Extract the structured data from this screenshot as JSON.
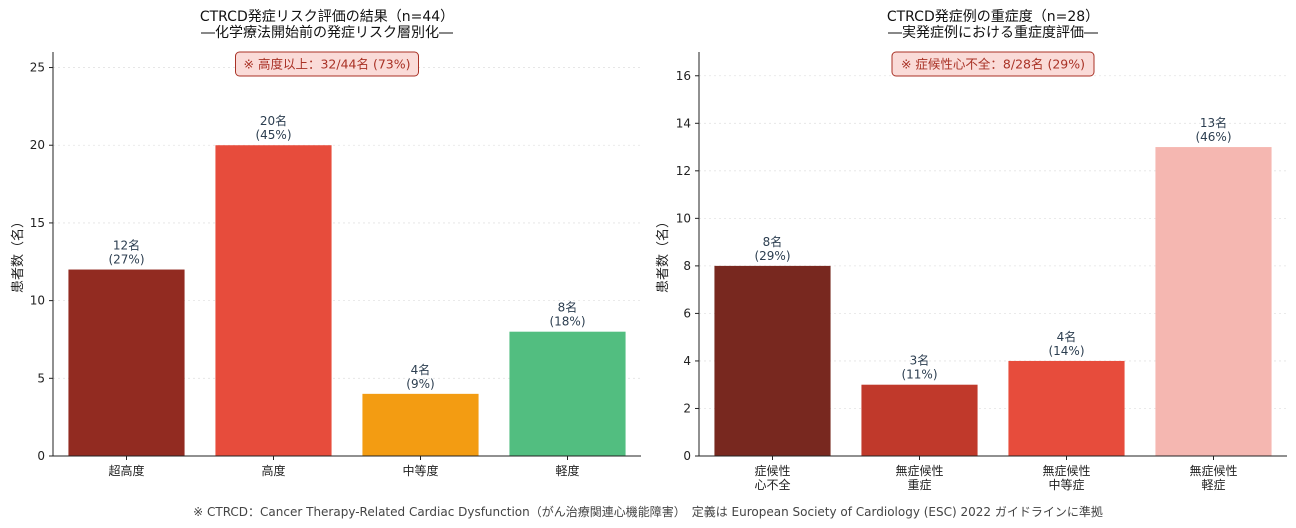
{
  "chart_data": [
    {
      "type": "bar",
      "title": "CTRCD発症リスク評価の結果（n=44）",
      "subtitle": "―化学療法開始前の発症リスク層別化―",
      "ylabel": "患者数（名）",
      "xlabel": "",
      "ylim": [
        0,
        26
      ],
      "yticks": [
        0,
        5,
        10,
        15,
        20,
        25
      ],
      "grid": "horizontal dotted",
      "categories": [
        [
          "超高度"
        ],
        [
          "高度"
        ],
        [
          "中等度"
        ],
        [
          "軽度"
        ]
      ],
      "values": [
        12,
        20,
        4,
        8
      ],
      "value_labels": [
        [
          "12名",
          "(27%)"
        ],
        [
          "20名",
          "(45%)"
        ],
        [
          "4名",
          "(9%)"
        ],
        [
          "8名",
          "(18%)"
        ]
      ],
      "colors": [
        "#922b21",
        "#e74c3c",
        "#f39c12",
        "#52be80"
      ],
      "annotation": "※ 高度以上：32/44名 (73%)"
    },
    {
      "type": "bar",
      "title": "CTRCD発症例の重症度（n=28）",
      "subtitle": "―実発症例における重症度評価―",
      "ylabel": "患者数（名）",
      "xlabel": "",
      "ylim": [
        0,
        17
      ],
      "yticks": [
        0,
        2,
        4,
        6,
        8,
        10,
        12,
        14,
        16
      ],
      "grid": "horizontal dotted",
      "categories": [
        [
          "症候性",
          "心不全"
        ],
        [
          "無症候性",
          "重症"
        ],
        [
          "無症候性",
          "中等症"
        ],
        [
          "無症候性",
          "軽症"
        ]
      ],
      "values": [
        8,
        3,
        4,
        13
      ],
      "value_labels": [
        [
          "8名",
          "(29%)"
        ],
        [
          "3名",
          "(11%)"
        ],
        [
          "4名",
          "(14%)"
        ],
        [
          "13名",
          "(46%)"
        ]
      ],
      "colors": [
        "#78281f",
        "#c0392b",
        "#e74c3c",
        "#f5b7b1"
      ],
      "annotation": "※ 症候性心不全：8/28名 (29%)"
    }
  ],
  "footnote": "※ CTRCD：Cancer Therapy-Related Cardiac Dysfunction（がん治療関連心機能障害）　定義は European Society of Cardiology (ESC) 2022 ガイドラインに準拠"
}
